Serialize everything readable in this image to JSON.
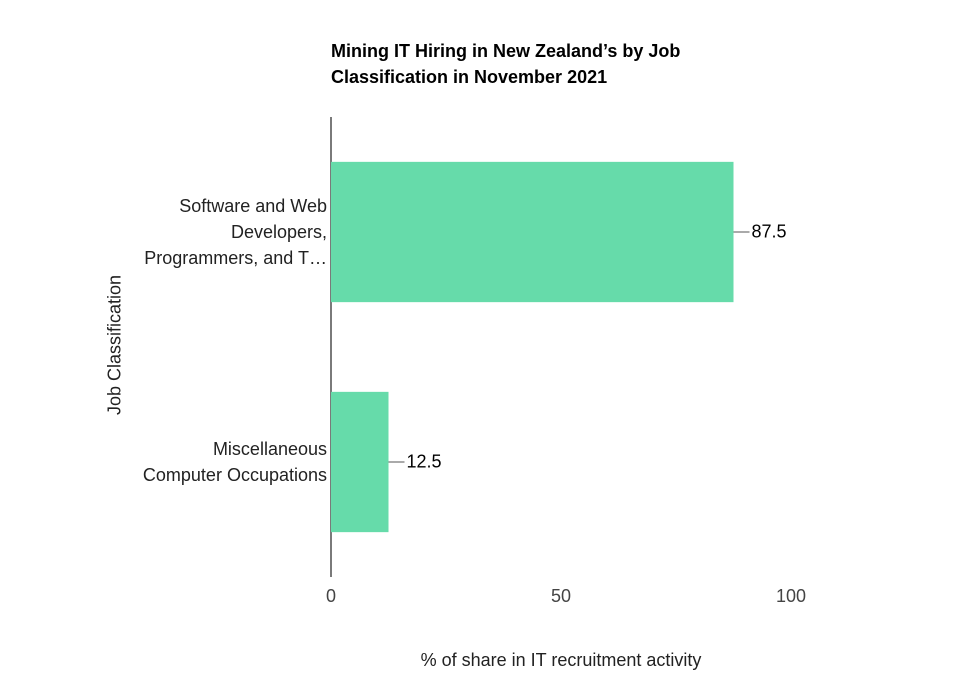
{
  "chart_data": {
    "type": "bar",
    "orientation": "horizontal",
    "title": "Mining IT Hiring in New Zealand’s by Job Classification in November 2021",
    "x_label": "% of share in IT recruitment activity",
    "y_label": "Job Classification",
    "categories": [
      "Software and Web\nDevelopers,\nProgrammers, and T…",
      "Miscellaneous\nComputer Occupations"
    ],
    "values": [
      87.5,
      12.5
    ],
    "color": "#66dbaa",
    "xlim": [
      0,
      100
    ],
    "xticks": [
      0,
      50,
      100
    ],
    "grid": false
  }
}
